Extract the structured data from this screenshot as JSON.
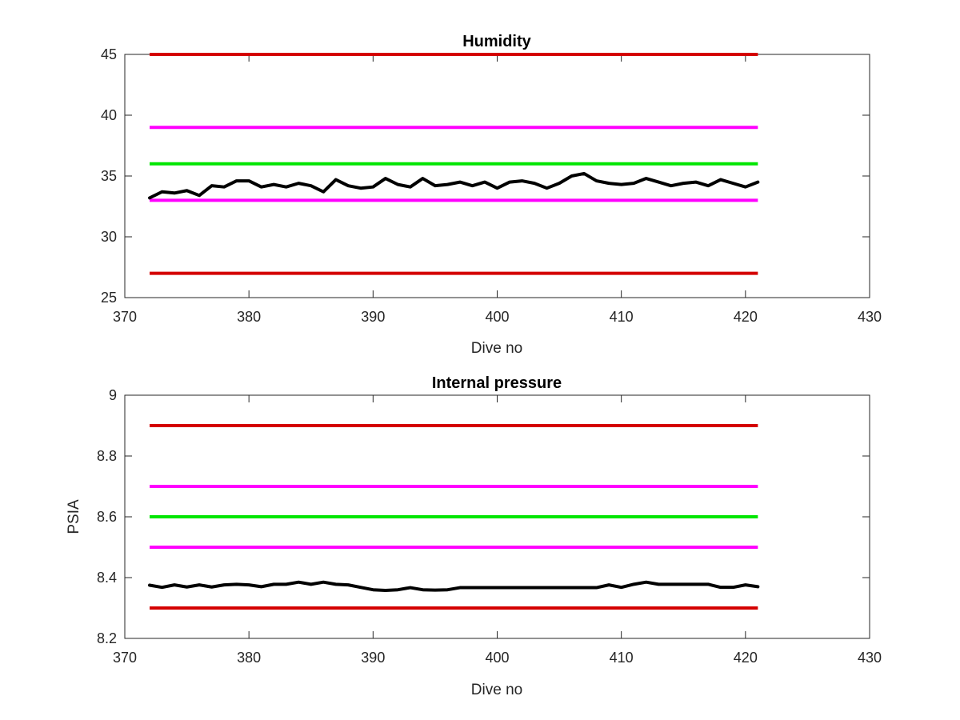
{
  "chart_data": [
    {
      "type": "line",
      "title": "Humidity",
      "xlabel": "Dive no",
      "ylabel": "",
      "xlim": [
        370,
        430
      ],
      "ylim": [
        25,
        45
      ],
      "xticks": [
        "370",
        "380",
        "390",
        "400",
        "410",
        "420",
        "430"
      ],
      "yticks": [
        "25",
        "30",
        "35",
        "40",
        "45"
      ],
      "grid": false,
      "thresholds": [
        {
          "y": 45,
          "color": "#d40000",
          "x": [
            372,
            421
          ]
        },
        {
          "y": 39,
          "color": "#ff00ff",
          "x": [
            372,
            421
          ]
        },
        {
          "y": 36,
          "color": "#00e600",
          "x": [
            372,
            421
          ]
        },
        {
          "y": 33,
          "color": "#ff00ff",
          "x": [
            372,
            421
          ]
        },
        {
          "y": 27,
          "color": "#d40000",
          "x": [
            372,
            421
          ]
        }
      ],
      "series": [
        {
          "color": "#000000",
          "x": [
            372,
            373,
            374,
            375,
            376,
            377,
            378,
            379,
            380,
            381,
            382,
            383,
            384,
            385,
            386,
            387,
            388,
            389,
            390,
            391,
            392,
            393,
            394,
            395,
            396,
            397,
            398,
            399,
            400,
            401,
            402,
            403,
            404,
            405,
            406,
            407,
            408,
            409,
            410,
            411,
            412,
            413,
            414,
            415,
            416,
            417,
            418,
            419,
            420,
            421
          ],
          "values": [
            33.2,
            33.7,
            33.6,
            33.8,
            33.4,
            34.2,
            34.1,
            34.6,
            34.6,
            34.1,
            34.3,
            34.1,
            34.4,
            34.2,
            33.7,
            34.7,
            34.2,
            34.0,
            34.1,
            34.8,
            34.3,
            34.1,
            34.8,
            34.2,
            34.3,
            34.5,
            34.2,
            34.5,
            34.0,
            34.5,
            34.6,
            34.4,
            34.0,
            34.4,
            35.0,
            35.2,
            34.6,
            34.4,
            34.3,
            34.4,
            34.8,
            34.5,
            34.2,
            34.4,
            34.5,
            34.2,
            34.7,
            34.4,
            34.1,
            34.5
          ]
        }
      ]
    },
    {
      "type": "line",
      "title": "Internal pressure",
      "xlabel": "Dive no",
      "ylabel": "PSIA",
      "xlim": [
        370,
        430
      ],
      "ylim": [
        8.2,
        9
      ],
      "xticks": [
        "370",
        "380",
        "390",
        "400",
        "410",
        "420",
        "430"
      ],
      "yticks": [
        "8.2",
        "8.4",
        "8.6",
        "8.8",
        "9"
      ],
      "grid": false,
      "thresholds": [
        {
          "y": 8.9,
          "color": "#d40000",
          "x": [
            372,
            421
          ]
        },
        {
          "y": 8.7,
          "color": "#ff00ff",
          "x": [
            372,
            421
          ]
        },
        {
          "y": 8.6,
          "color": "#00e600",
          "x": [
            372,
            421
          ]
        },
        {
          "y": 8.5,
          "color": "#ff00ff",
          "x": [
            372,
            421
          ]
        },
        {
          "y": 8.3,
          "color": "#d40000",
          "x": [
            372,
            421
          ]
        }
      ],
      "series": [
        {
          "color": "#000000",
          "x": [
            372,
            373,
            374,
            375,
            376,
            377,
            378,
            379,
            380,
            381,
            382,
            383,
            384,
            385,
            386,
            387,
            388,
            389,
            390,
            391,
            392,
            393,
            394,
            395,
            396,
            397,
            398,
            399,
            400,
            401,
            402,
            403,
            404,
            405,
            406,
            407,
            408,
            409,
            410,
            411,
            412,
            413,
            414,
            415,
            416,
            417,
            418,
            419,
            420,
            421
          ],
          "values": [
            8.375,
            8.368,
            8.376,
            8.369,
            8.376,
            8.369,
            8.376,
            8.378,
            8.376,
            8.37,
            8.378,
            8.378,
            8.385,
            8.378,
            8.385,
            8.378,
            8.376,
            8.368,
            8.36,
            8.358,
            8.36,
            8.367,
            8.36,
            8.359,
            8.36,
            8.367,
            8.367,
            8.367,
            8.367,
            8.367,
            8.367,
            8.367,
            8.367,
            8.367,
            8.367,
            8.367,
            8.367,
            8.376,
            8.368,
            8.378,
            8.385,
            8.378,
            8.378,
            8.378,
            8.378,
            8.378,
            8.368,
            8.368,
            8.376,
            8.37
          ]
        }
      ]
    }
  ]
}
